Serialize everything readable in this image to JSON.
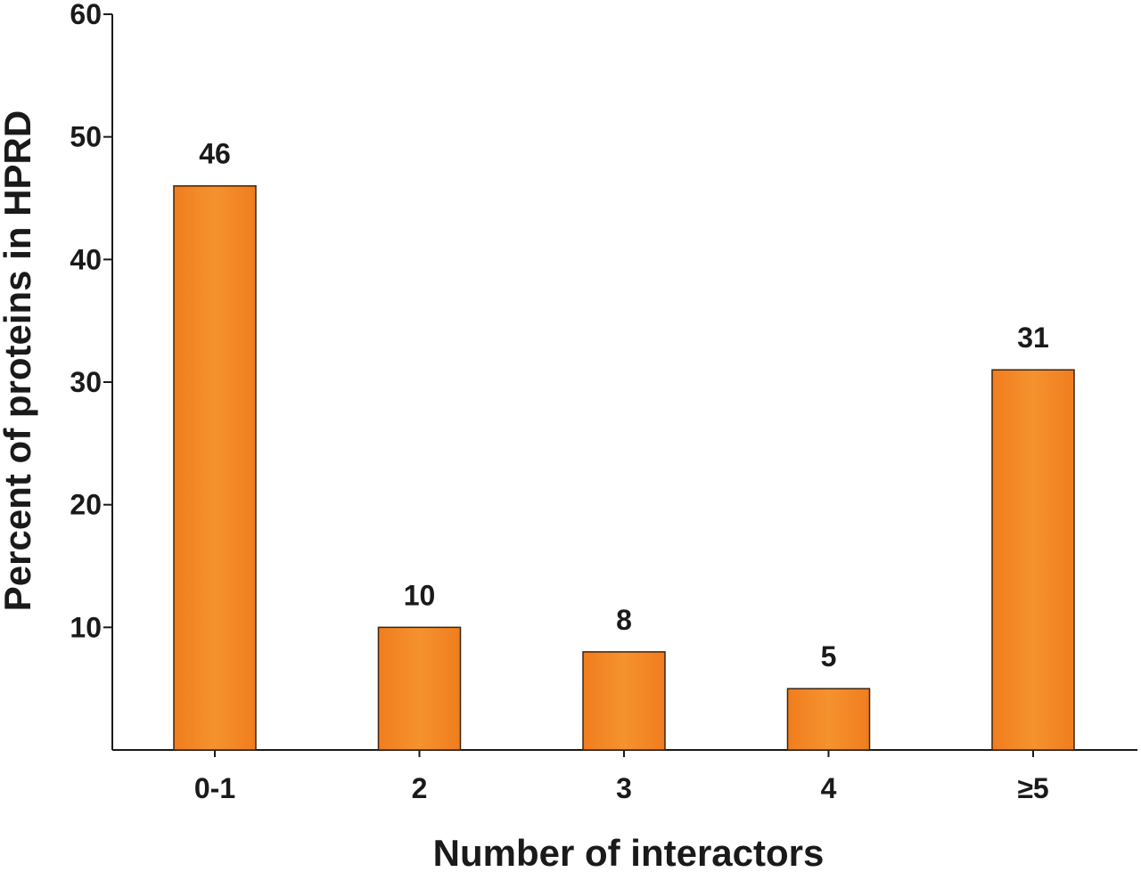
{
  "chart_data": {
    "type": "bar",
    "categories": [
      "0-1",
      "2",
      "3",
      "4",
      "≥5"
    ],
    "values": [
      46,
      10,
      8,
      5,
      31
    ],
    "data_labels": [
      "46",
      "10",
      "8",
      "5",
      "31"
    ],
    "title": "",
    "xlabel": "Number of interactors",
    "ylabel": "Percent of proteins in HPRD",
    "ylim": [
      0,
      60
    ],
    "yticks": [
      10,
      20,
      30,
      40,
      50,
      60
    ],
    "grid": false,
    "legend": "none",
    "bar_color": "#f28a26",
    "axis_color": "#1a1a1a"
  }
}
